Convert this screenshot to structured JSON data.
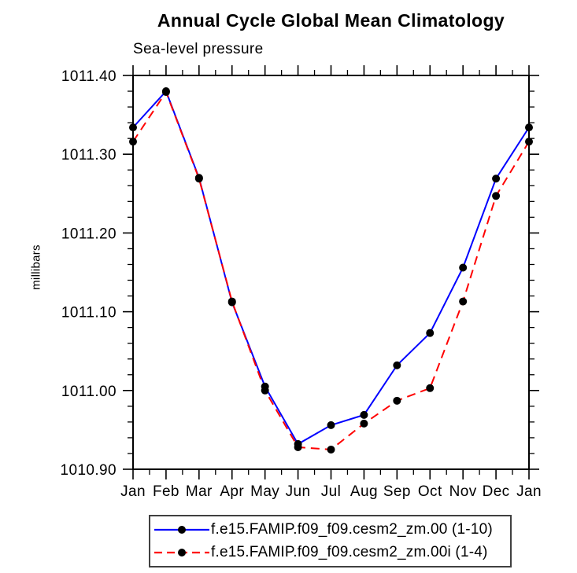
{
  "chart_data": {
    "type": "line",
    "title": "Annual Cycle Global Mean Climatology",
    "subtitle": "Sea-level pressure",
    "ylabel": "millibars",
    "xlabel": "",
    "categories": [
      "Jan",
      "Feb",
      "Mar",
      "Apr",
      "May",
      "Jun",
      "Jul",
      "Aug",
      "Sep",
      "Oct",
      "Nov",
      "Dec",
      "Jan"
    ],
    "ylim": [
      1010.9,
      1011.4
    ],
    "y_tick_values": [
      1010.9,
      1011.0,
      1011.1,
      1011.2,
      1011.3,
      1011.4
    ],
    "y_tick_labels": [
      "1010.90",
      "1011.00",
      "1011.10",
      "1011.20",
      "1011.30",
      "1011.40"
    ],
    "y_minor_step": 0.02,
    "x_minor_step": 0.5,
    "grid": false,
    "legend_position": "bottom",
    "marker": {
      "shape": "circle",
      "color": "#000000"
    },
    "axis_color": "#000000",
    "series": [
      {
        "name": "f.e15.FAMIP.f09_f09.cesm2_zm.00 (1-10)",
        "color": "#0000ff",
        "line_style": "solid",
        "values": [
          1011.334,
          1011.38,
          1011.27,
          1011.112,
          1011.005,
          1010.932,
          1010.956,
          1010.969,
          1011.032,
          1011.073,
          1011.156,
          1011.269,
          1011.334
        ]
      },
      {
        "name": "f.e15.FAMIP.f09_f09.cesm2_zm.00i (1-4)",
        "color": "#ff0000",
        "line_style": "dashed",
        "values": [
          1011.316,
          1011.379,
          1011.269,
          1011.113,
          1011.0,
          1010.928,
          1010.925,
          1010.958,
          1010.987,
          1011.003,
          1011.113,
          1011.247,
          1011.316
        ]
      }
    ]
  }
}
